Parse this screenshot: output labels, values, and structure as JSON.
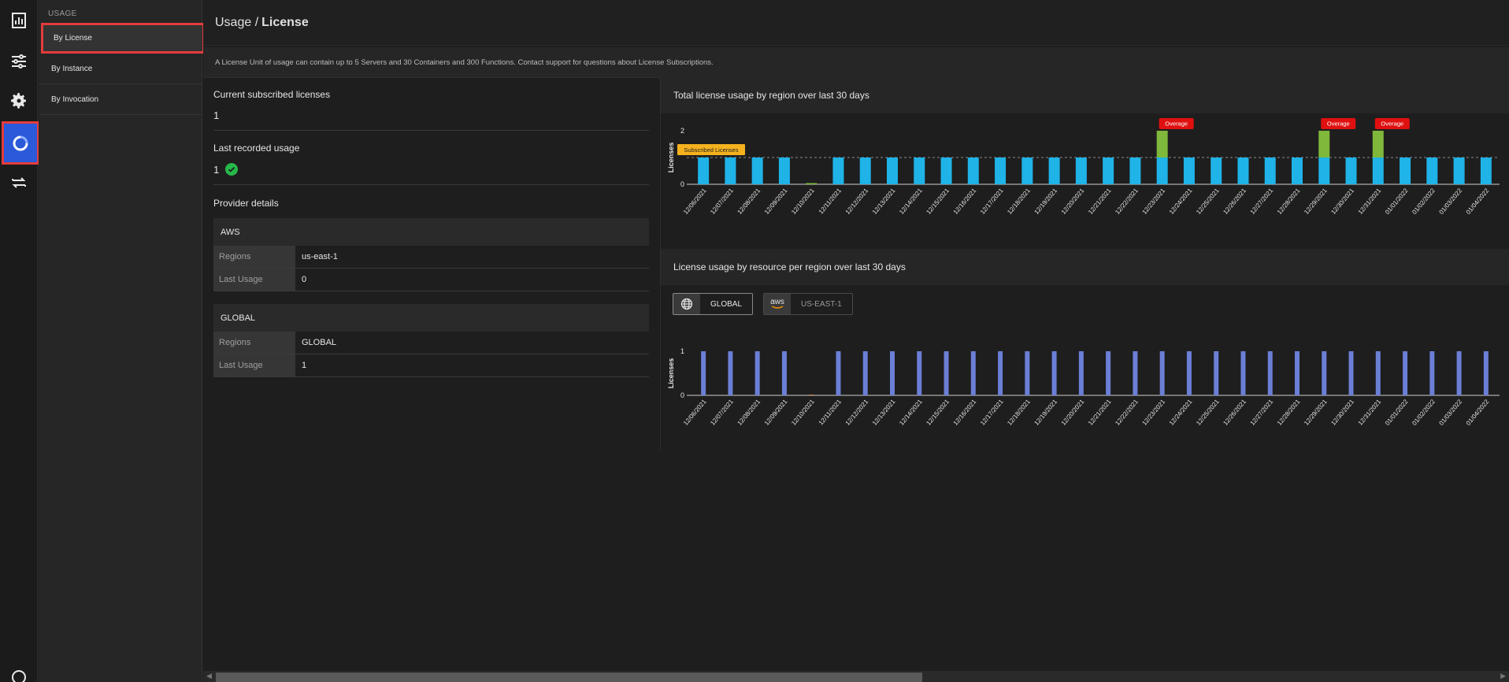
{
  "rail": {
    "items": [
      {
        "name": "dashboard-icon"
      },
      {
        "name": "sliders-icon"
      },
      {
        "name": "gear-icon"
      },
      {
        "name": "usage-icon"
      },
      {
        "name": "transfer-icon"
      }
    ]
  },
  "subnav": {
    "title": "USAGE",
    "items": [
      {
        "label": "By License"
      },
      {
        "label": "By Instance"
      },
      {
        "label": "By Invocation"
      }
    ]
  },
  "header": {
    "section": "Usage /",
    "page": "License"
  },
  "notice": "A License Unit of usage can contain up to 5 Servers and 30 Containers and 300 Functions. Contact support for questions about License Subscriptions.",
  "summary": {
    "subscribed_label": "Current subscribed licenses",
    "subscribed_value": "1",
    "recorded_label": "Last recorded usage",
    "recorded_value": "1",
    "provider_title": "Provider details"
  },
  "providers": [
    {
      "name": "AWS",
      "regions_label": "Regions",
      "regions_value": "us-east-1",
      "usage_label": "Last Usage",
      "usage_value": "0"
    },
    {
      "name": "GLOBAL",
      "regions_label": "Regions",
      "regions_value": "GLOBAL",
      "usage_label": "Last Usage",
      "usage_value": "1"
    }
  ],
  "tabs": {
    "global": "GLOBAL",
    "aws_logo": "aws",
    "us_east": "US-EAST-1"
  },
  "colors": {
    "bar": "#1fb3e8",
    "overage_bar": "#7fb83a",
    "bar2": "#6b7fd6",
    "overage_tag": "#e01010",
    "subscribed_tag": "#f5b21e"
  },
  "chart_data": [
    {
      "type": "bar",
      "title": "Total license usage by region over last 30 days",
      "ylabel": "Licenses",
      "ylim": [
        0,
        2
      ],
      "yticks": [
        "2",
        "0"
      ],
      "threshold": 1,
      "threshold_label": "Subscribed Licenses",
      "overage_label": "Overage",
      "categories": [
        "12/06/2021",
        "12/07/2021",
        "12/08/2021",
        "12/09/2021",
        "12/10/2021",
        "12/11/2021",
        "12/12/2021",
        "12/13/2021",
        "12/14/2021",
        "12/15/2021",
        "12/16/2021",
        "12/17/2021",
        "12/18/2021",
        "12/19/2021",
        "12/20/2021",
        "12/21/2021",
        "12/22/2021",
        "12/23/2021",
        "12/24/2021",
        "12/25/2021",
        "12/26/2021",
        "12/27/2021",
        "12/28/2021",
        "12/29/2021",
        "12/30/2021",
        "12/31/2021",
        "01/01/2022",
        "01/02/2022",
        "01/03/2022",
        "01/04/2022"
      ],
      "values": [
        1,
        1,
        1,
        1,
        0,
        1,
        1,
        1,
        1,
        1,
        1,
        1,
        1,
        1,
        1,
        1,
        1,
        2,
        1,
        1,
        1,
        1,
        1,
        2,
        1,
        2,
        1,
        1,
        1,
        1
      ]
    },
    {
      "type": "bar",
      "title": "License usage by resource per region over last 30 days",
      "ylabel": "Licenses",
      "ylim": [
        0,
        1
      ],
      "yticks": [
        "1",
        "0"
      ],
      "categories": [
        "12/06/2021",
        "12/07/2021",
        "12/08/2021",
        "12/09/2021",
        "12/10/2021",
        "12/11/2021",
        "12/12/2021",
        "12/13/2021",
        "12/14/2021",
        "12/15/2021",
        "12/16/2021",
        "12/17/2021",
        "12/18/2021",
        "12/19/2021",
        "12/20/2021",
        "12/21/2021",
        "12/22/2021",
        "12/23/2021",
        "12/24/2021",
        "12/25/2021",
        "12/26/2021",
        "12/27/2021",
        "12/28/2021",
        "12/29/2021",
        "12/30/2021",
        "12/31/2021",
        "01/01/2022",
        "01/02/2022",
        "01/03/2022",
        "01/04/2022"
      ],
      "values": [
        1,
        1,
        1,
        1,
        0,
        1,
        1,
        1,
        1,
        1,
        1,
        1,
        1,
        1,
        1,
        1,
        1,
        1,
        1,
        1,
        1,
        1,
        1,
        1,
        1,
        1,
        1,
        1,
        1,
        1
      ]
    }
  ]
}
